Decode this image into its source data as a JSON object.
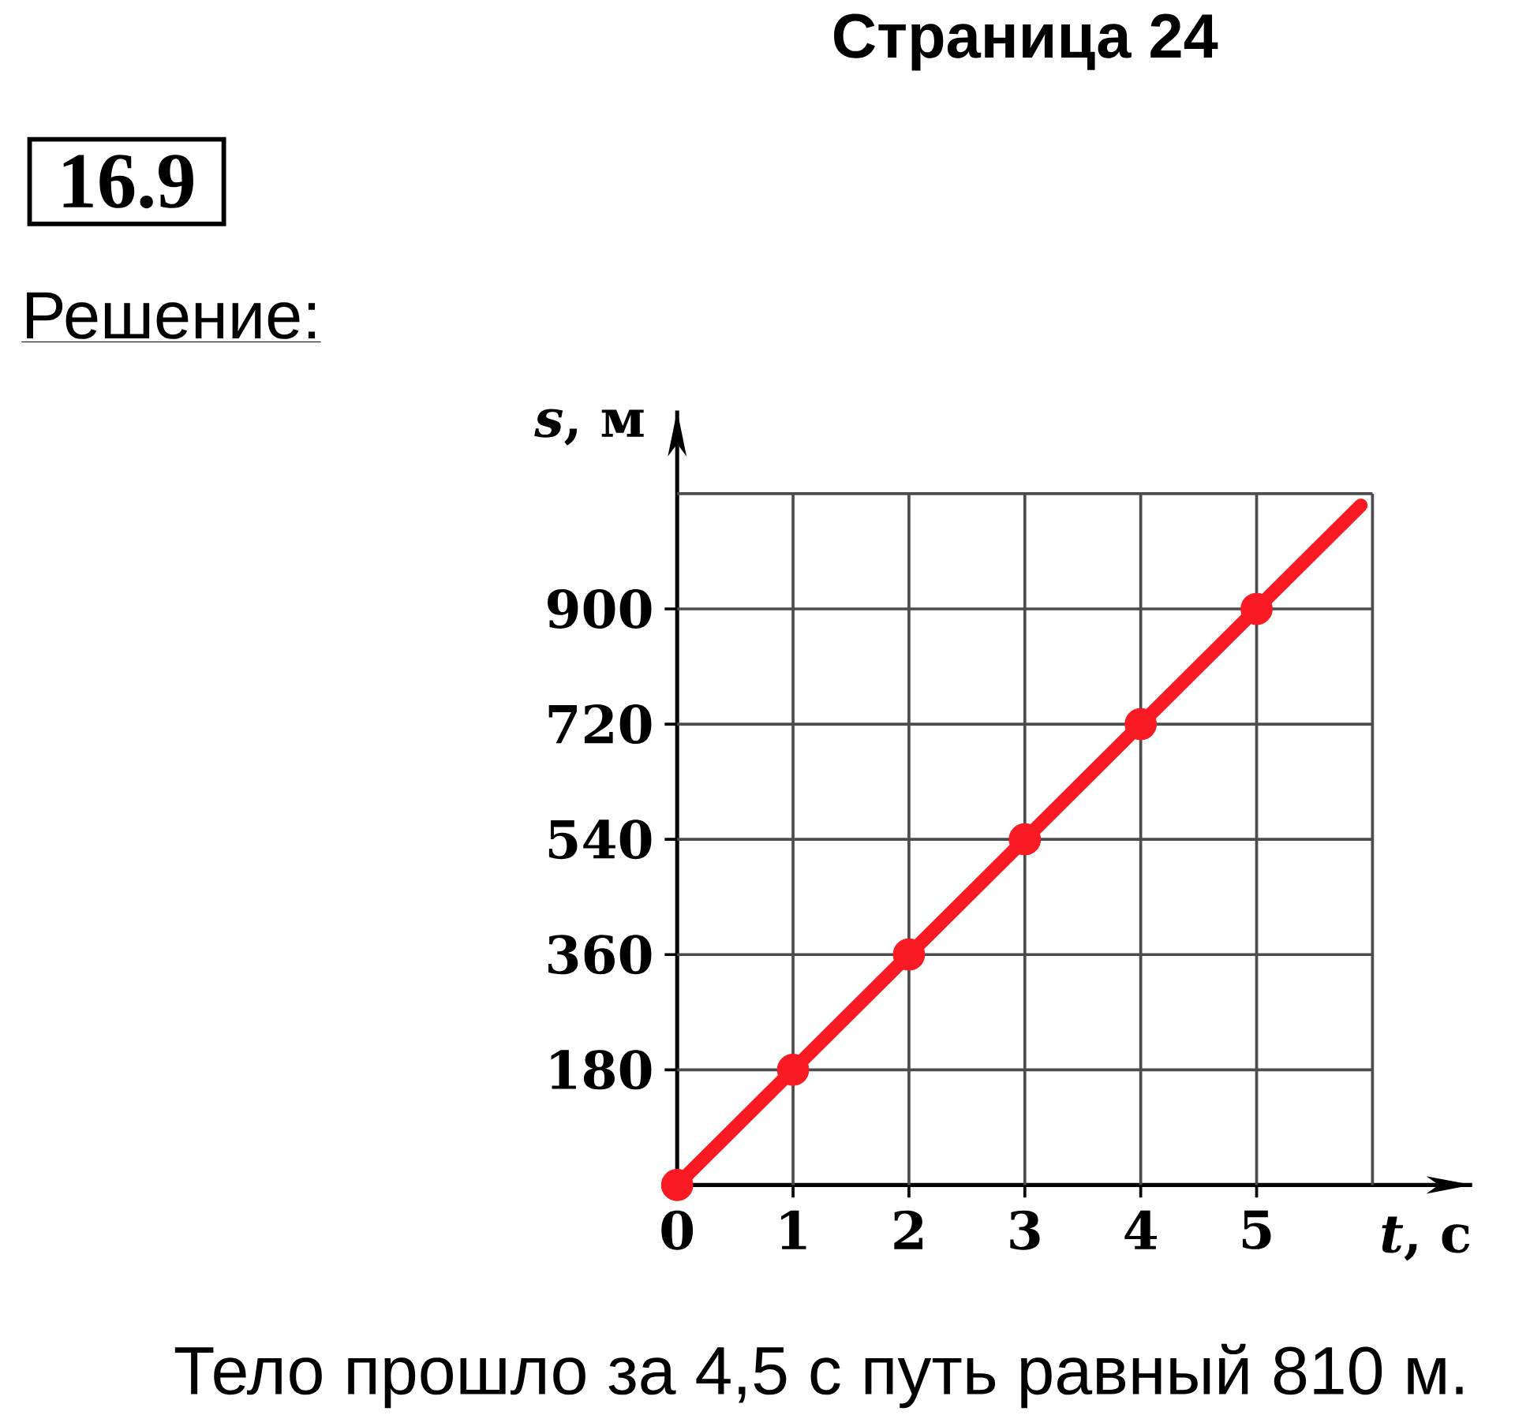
{
  "chart_data": {
    "type": "line",
    "title": "Страница 24",
    "xlabel": "*t*, с",
    "ylabel": "*s*, м",
    "annotations": [
      "16.9",
      "Решение:",
      "Тело прошло за 4,5 с путь равный 810 м."
    ],
    "series": [
      {
        "color": "#fa1a24",
        "x": [
          0,
          5.9
        ],
        "values": [
          0,
          1062
        ]
      },
      {
        "type": "scatter",
        "marker": "circle",
        "color": "#fa1a24",
        "x": [
          0,
          1,
          2,
          3,
          4,
          5
        ],
        "values": [
          0,
          180,
          360,
          540,
          720,
          900
        ]
      }
    ],
    "xlim": [
      0,
      6.86
    ],
    "ylim": [
      0,
      1210
    ],
    "xticks": [
      0,
      1,
      2,
      3,
      4,
      5,
      {
        "value": 6,
        "label": null
      }
    ],
    "yticks": [
      180,
      360,
      540,
      720,
      900,
      {
        "value": 1080,
        "label": null
      }
    ],
    "grid": true
  }
}
